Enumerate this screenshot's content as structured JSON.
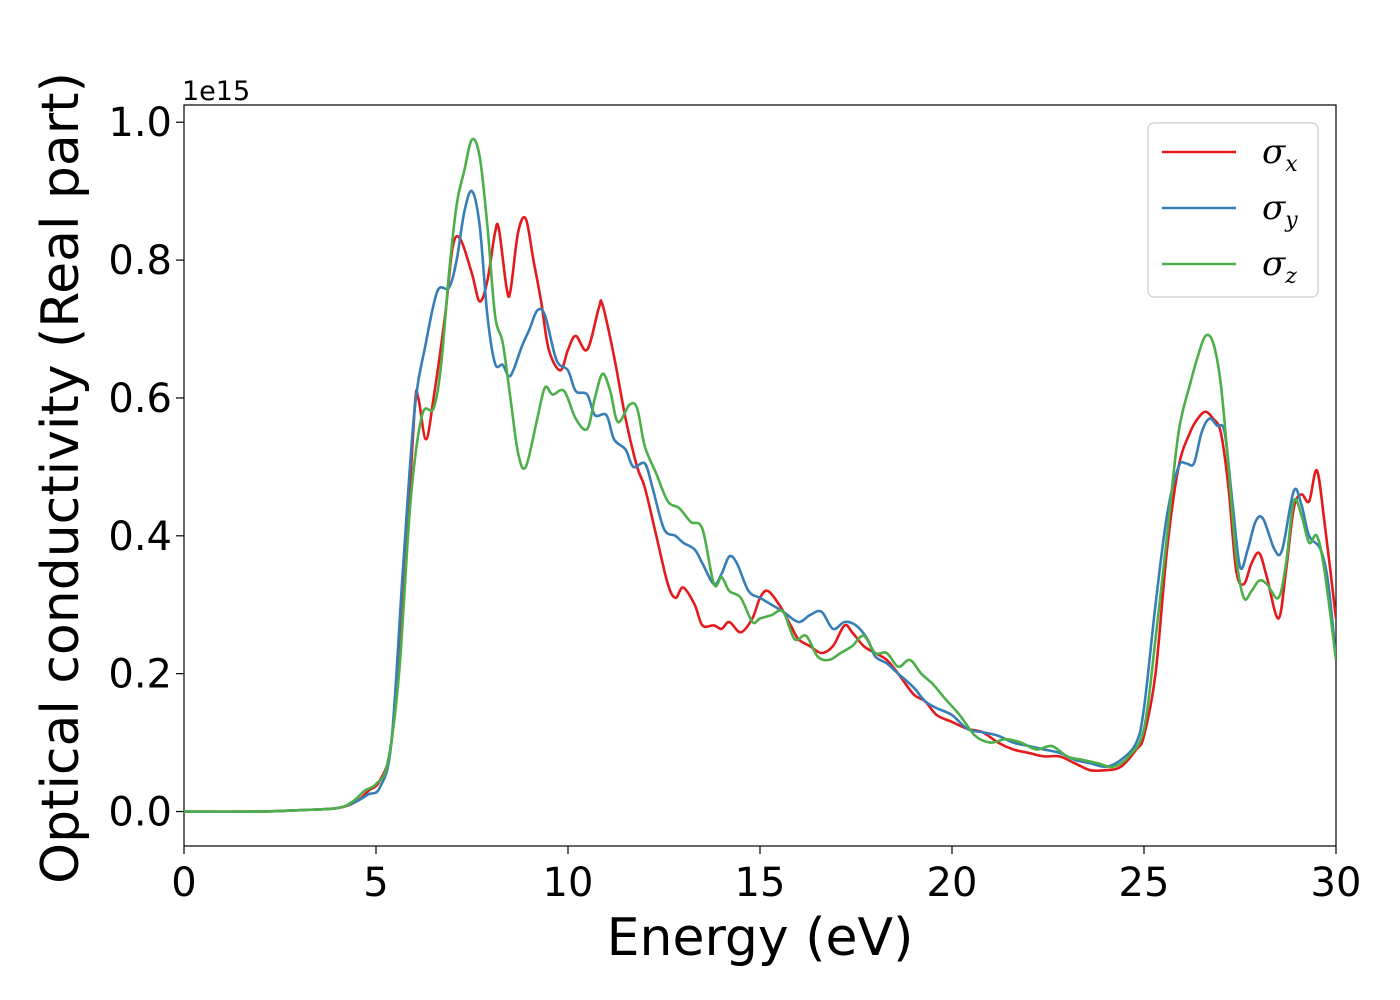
{
  "chart_data": {
    "type": "line",
    "title": "",
    "xlabel": "Energy (eV)",
    "ylabel": "Optical conductivity (Real part)",
    "y_offset_label": "1e15",
    "xlim": [
      0,
      30
    ],
    "ylim": [
      -0.05,
      1.025
    ],
    "x_ticks": [
      0,
      5,
      10,
      15,
      20,
      25,
      30
    ],
    "x_tick_labels": [
      "0",
      "5",
      "10",
      "15",
      "20",
      "25",
      "30"
    ],
    "y_ticks": [
      0.0,
      0.2,
      0.4,
      0.6,
      0.8,
      1.0
    ],
    "y_tick_labels": [
      "0.0",
      "0.2",
      "0.4",
      "0.6",
      "0.8",
      "1.0"
    ],
    "grid": false,
    "legend_position": "top-right",
    "series": [
      {
        "name": "σx",
        "symbol": "σ",
        "subscript": "x",
        "color": "#e41a1c",
        "points": [
          [
            0,
            0
          ],
          [
            2,
            0
          ],
          [
            3,
            0.002
          ],
          [
            4,
            0.005
          ],
          [
            4.5,
            0.015
          ],
          [
            4.8,
            0.03
          ],
          [
            5.1,
            0.045
          ],
          [
            5.4,
            0.1
          ],
          [
            5.7,
            0.3
          ],
          [
            6.0,
            0.58
          ],
          [
            6.1,
            0.6
          ],
          [
            6.3,
            0.54
          ],
          [
            6.5,
            0.6
          ],
          [
            6.8,
            0.72
          ],
          [
            7.0,
            0.82
          ],
          [
            7.2,
            0.83
          ],
          [
            7.5,
            0.78
          ],
          [
            7.7,
            0.74
          ],
          [
            7.9,
            0.77
          ],
          [
            8.1,
            0.84
          ],
          [
            8.2,
            0.845
          ],
          [
            8.4,
            0.76
          ],
          [
            8.5,
            0.755
          ],
          [
            8.7,
            0.84
          ],
          [
            8.9,
            0.86
          ],
          [
            9.1,
            0.8
          ],
          [
            9.3,
            0.74
          ],
          [
            9.5,
            0.67
          ],
          [
            9.8,
            0.64
          ],
          [
            10.0,
            0.67
          ],
          [
            10.2,
            0.69
          ],
          [
            10.5,
            0.67
          ],
          [
            10.8,
            0.73
          ],
          [
            10.9,
            0.735
          ],
          [
            11.2,
            0.66
          ],
          [
            11.5,
            0.57
          ],
          [
            11.8,
            0.5
          ],
          [
            12.0,
            0.47
          ],
          [
            12.3,
            0.4
          ],
          [
            12.6,
            0.33
          ],
          [
            12.8,
            0.31
          ],
          [
            13.0,
            0.325
          ],
          [
            13.3,
            0.3
          ],
          [
            13.5,
            0.27
          ],
          [
            13.8,
            0.27
          ],
          [
            14.0,
            0.265
          ],
          [
            14.2,
            0.275
          ],
          [
            14.5,
            0.26
          ],
          [
            14.8,
            0.28
          ],
          [
            15.0,
            0.31
          ],
          [
            15.2,
            0.32
          ],
          [
            15.5,
            0.3
          ],
          [
            15.8,
            0.27
          ],
          [
            16.0,
            0.25
          ],
          [
            16.3,
            0.24
          ],
          [
            16.6,
            0.23
          ],
          [
            16.9,
            0.24
          ],
          [
            17.2,
            0.27
          ],
          [
            17.4,
            0.26
          ],
          [
            17.7,
            0.24
          ],
          [
            18.0,
            0.23
          ],
          [
            18.3,
            0.22
          ],
          [
            18.6,
            0.2
          ],
          [
            19.0,
            0.17
          ],
          [
            19.3,
            0.16
          ],
          [
            19.6,
            0.14
          ],
          [
            20.0,
            0.13
          ],
          [
            20.4,
            0.12
          ],
          [
            20.8,
            0.115
          ],
          [
            21.2,
            0.1
          ],
          [
            21.6,
            0.09
          ],
          [
            22.0,
            0.085
          ],
          [
            22.4,
            0.08
          ],
          [
            22.8,
            0.08
          ],
          [
            23.2,
            0.07
          ],
          [
            23.6,
            0.06
          ],
          [
            24.0,
            0.06
          ],
          [
            24.4,
            0.065
          ],
          [
            24.8,
            0.09
          ],
          [
            25.0,
            0.11
          ],
          [
            25.3,
            0.2
          ],
          [
            25.6,
            0.38
          ],
          [
            25.9,
            0.5
          ],
          [
            26.2,
            0.55
          ],
          [
            26.4,
            0.57
          ],
          [
            26.6,
            0.58
          ],
          [
            26.8,
            0.57
          ],
          [
            27.0,
            0.55
          ],
          [
            27.2,
            0.47
          ],
          [
            27.4,
            0.35
          ],
          [
            27.6,
            0.33
          ],
          [
            27.8,
            0.36
          ],
          [
            28.0,
            0.375
          ],
          [
            28.2,
            0.34
          ],
          [
            28.5,
            0.28
          ],
          [
            28.7,
            0.35
          ],
          [
            28.9,
            0.44
          ],
          [
            29.1,
            0.46
          ],
          [
            29.3,
            0.45
          ],
          [
            29.5,
            0.495
          ],
          [
            29.7,
            0.42
          ],
          [
            30.0,
            0.28
          ]
        ]
      },
      {
        "name": "σy",
        "symbol": "σ",
        "subscript": "y",
        "color": "#377eb8",
        "points": [
          [
            0,
            0
          ],
          [
            2,
            0
          ],
          [
            3,
            0.002
          ],
          [
            4,
            0.005
          ],
          [
            4.5,
            0.015
          ],
          [
            4.8,
            0.025
          ],
          [
            5.1,
            0.035
          ],
          [
            5.4,
            0.1
          ],
          [
            5.7,
            0.35
          ],
          [
            6.0,
            0.58
          ],
          [
            6.3,
            0.68
          ],
          [
            6.6,
            0.755
          ],
          [
            6.9,
            0.76
          ],
          [
            7.1,
            0.8
          ],
          [
            7.3,
            0.87
          ],
          [
            7.5,
            0.9
          ],
          [
            7.7,
            0.85
          ],
          [
            7.9,
            0.72
          ],
          [
            8.1,
            0.65
          ],
          [
            8.3,
            0.648
          ],
          [
            8.5,
            0.632
          ],
          [
            8.8,
            0.675
          ],
          [
            9.0,
            0.7
          ],
          [
            9.2,
            0.727
          ],
          [
            9.4,
            0.72
          ],
          [
            9.7,
            0.655
          ],
          [
            10.0,
            0.64
          ],
          [
            10.2,
            0.61
          ],
          [
            10.5,
            0.605
          ],
          [
            10.7,
            0.575
          ],
          [
            11.0,
            0.575
          ],
          [
            11.2,
            0.54
          ],
          [
            11.5,
            0.525
          ],
          [
            11.7,
            0.5
          ],
          [
            12.0,
            0.505
          ],
          [
            12.2,
            0.47
          ],
          [
            12.5,
            0.41
          ],
          [
            12.8,
            0.4
          ],
          [
            13.0,
            0.39
          ],
          [
            13.3,
            0.38
          ],
          [
            13.5,
            0.36
          ],
          [
            13.8,
            0.33
          ],
          [
            14.0,
            0.345
          ],
          [
            14.2,
            0.37
          ],
          [
            14.4,
            0.36
          ],
          [
            14.7,
            0.32
          ],
          [
            15.0,
            0.31
          ],
          [
            15.3,
            0.3
          ],
          [
            15.6,
            0.29
          ],
          [
            16.0,
            0.275
          ],
          [
            16.3,
            0.285
          ],
          [
            16.6,
            0.29
          ],
          [
            16.9,
            0.265
          ],
          [
            17.2,
            0.275
          ],
          [
            17.5,
            0.27
          ],
          [
            17.8,
            0.25
          ],
          [
            18.0,
            0.225
          ],
          [
            18.3,
            0.215
          ],
          [
            18.6,
            0.2
          ],
          [
            19.0,
            0.18
          ],
          [
            19.3,
            0.16
          ],
          [
            19.6,
            0.15
          ],
          [
            20.0,
            0.14
          ],
          [
            20.4,
            0.12
          ],
          [
            20.8,
            0.115
          ],
          [
            21.2,
            0.11
          ],
          [
            21.6,
            0.1
          ],
          [
            22.0,
            0.095
          ],
          [
            22.4,
            0.09
          ],
          [
            22.8,
            0.085
          ],
          [
            23.2,
            0.075
          ],
          [
            23.6,
            0.07
          ],
          [
            24.0,
            0.065
          ],
          [
            24.4,
            0.075
          ],
          [
            24.8,
            0.1
          ],
          [
            25.0,
            0.15
          ],
          [
            25.3,
            0.3
          ],
          [
            25.6,
            0.43
          ],
          [
            25.9,
            0.5
          ],
          [
            26.1,
            0.505
          ],
          [
            26.3,
            0.505
          ],
          [
            26.5,
            0.55
          ],
          [
            26.7,
            0.57
          ],
          [
            26.9,
            0.56
          ],
          [
            27.1,
            0.55
          ],
          [
            27.3,
            0.45
          ],
          [
            27.5,
            0.355
          ],
          [
            27.7,
            0.38
          ],
          [
            27.9,
            0.42
          ],
          [
            28.1,
            0.425
          ],
          [
            28.4,
            0.38
          ],
          [
            28.6,
            0.38
          ],
          [
            28.9,
            0.465
          ],
          [
            29.1,
            0.445
          ],
          [
            29.3,
            0.4
          ],
          [
            29.6,
            0.38
          ],
          [
            29.8,
            0.33
          ],
          [
            30.0,
            0.22
          ]
        ]
      },
      {
        "name": "σz",
        "symbol": "σ",
        "subscript": "z",
        "color": "#4daf4a",
        "points": [
          [
            0,
            0
          ],
          [
            2,
            0
          ],
          [
            3,
            0.002
          ],
          [
            4,
            0.005
          ],
          [
            4.4,
            0.015
          ],
          [
            4.7,
            0.03
          ],
          [
            5.0,
            0.04
          ],
          [
            5.3,
            0.07
          ],
          [
            5.6,
            0.2
          ],
          [
            5.9,
            0.45
          ],
          [
            6.2,
            0.575
          ],
          [
            6.5,
            0.585
          ],
          [
            6.7,
            0.65
          ],
          [
            6.9,
            0.78
          ],
          [
            7.1,
            0.88
          ],
          [
            7.3,
            0.93
          ],
          [
            7.5,
            0.975
          ],
          [
            7.7,
            0.95
          ],
          [
            7.9,
            0.85
          ],
          [
            8.1,
            0.72
          ],
          [
            8.3,
            0.68
          ],
          [
            8.5,
            0.6
          ],
          [
            8.7,
            0.52
          ],
          [
            8.9,
            0.5
          ],
          [
            9.2,
            0.57
          ],
          [
            9.4,
            0.615
          ],
          [
            9.6,
            0.605
          ],
          [
            9.9,
            0.61
          ],
          [
            10.2,
            0.57
          ],
          [
            10.5,
            0.555
          ],
          [
            10.7,
            0.6
          ],
          [
            10.9,
            0.635
          ],
          [
            11.1,
            0.61
          ],
          [
            11.3,
            0.565
          ],
          [
            11.6,
            0.59
          ],
          [
            11.8,
            0.585
          ],
          [
            12.0,
            0.53
          ],
          [
            12.3,
            0.49
          ],
          [
            12.6,
            0.45
          ],
          [
            12.9,
            0.44
          ],
          [
            13.2,
            0.42
          ],
          [
            13.5,
            0.41
          ],
          [
            13.8,
            0.33
          ],
          [
            14.0,
            0.34
          ],
          [
            14.2,
            0.32
          ],
          [
            14.5,
            0.31
          ],
          [
            14.8,
            0.275
          ],
          [
            15.0,
            0.28
          ],
          [
            15.3,
            0.285
          ],
          [
            15.6,
            0.29
          ],
          [
            15.9,
            0.25
          ],
          [
            16.2,
            0.255
          ],
          [
            16.5,
            0.225
          ],
          [
            16.8,
            0.22
          ],
          [
            17.1,
            0.23
          ],
          [
            17.4,
            0.24
          ],
          [
            17.7,
            0.255
          ],
          [
            18.0,
            0.23
          ],
          [
            18.3,
            0.23
          ],
          [
            18.6,
            0.21
          ],
          [
            18.9,
            0.22
          ],
          [
            19.2,
            0.2
          ],
          [
            19.5,
            0.185
          ],
          [
            19.8,
            0.165
          ],
          [
            20.2,
            0.14
          ],
          [
            20.6,
            0.11
          ],
          [
            21.0,
            0.1
          ],
          [
            21.4,
            0.105
          ],
          [
            21.8,
            0.1
          ],
          [
            22.2,
            0.09
          ],
          [
            22.6,
            0.095
          ],
          [
            23.0,
            0.08
          ],
          [
            23.4,
            0.075
          ],
          [
            23.8,
            0.07
          ],
          [
            24.2,
            0.065
          ],
          [
            24.6,
            0.08
          ],
          [
            25.0,
            0.12
          ],
          [
            25.3,
            0.25
          ],
          [
            25.6,
            0.4
          ],
          [
            25.9,
            0.55
          ],
          [
            26.2,
            0.62
          ],
          [
            26.4,
            0.66
          ],
          [
            26.6,
            0.69
          ],
          [
            26.8,
            0.68
          ],
          [
            27.0,
            0.62
          ],
          [
            27.2,
            0.5
          ],
          [
            27.4,
            0.37
          ],
          [
            27.6,
            0.31
          ],
          [
            27.8,
            0.32
          ],
          [
            28.0,
            0.335
          ],
          [
            28.2,
            0.33
          ],
          [
            28.5,
            0.31
          ],
          [
            28.7,
            0.36
          ],
          [
            28.9,
            0.45
          ],
          [
            29.1,
            0.43
          ],
          [
            29.3,
            0.39
          ],
          [
            29.5,
            0.4
          ],
          [
            29.7,
            0.35
          ],
          [
            30.0,
            0.22
          ]
        ]
      }
    ]
  }
}
